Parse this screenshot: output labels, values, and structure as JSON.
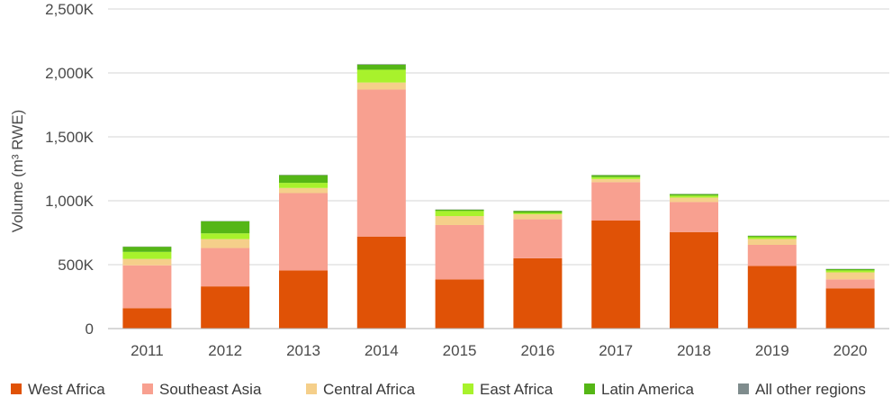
{
  "chart_data": {
    "type": "bar",
    "stacked": true,
    "title": "",
    "xlabel": "",
    "ylabel": "Volume (m³ RWE)",
    "ylim": [
      0,
      2500000
    ],
    "yticks": [
      0,
      500000,
      1000000,
      1500000,
      2000000,
      2500000
    ],
    "ytick_labels": [
      "0",
      "500K",
      "1,000K",
      "1,500K",
      "2,000K",
      "2,500K"
    ],
    "grid": true,
    "legend_position": "bottom",
    "categories": [
      "2011",
      "2012",
      "2013",
      "2014",
      "2015",
      "2016",
      "2017",
      "2018",
      "2019",
      "2020"
    ],
    "series": [
      {
        "name": "West Africa",
        "color": "#e05206",
        "values": [
          160000,
          330000,
          455000,
          720000,
          385000,
          550000,
          845000,
          755000,
          490000,
          315000
        ]
      },
      {
        "name": "Southeast Asia",
        "color": "#f8a090",
        "values": [
          335000,
          300000,
          605000,
          1150000,
          425000,
          305000,
          300000,
          235000,
          165000,
          70000
        ]
      },
      {
        "name": "Central Africa",
        "color": "#f5cf8a",
        "values": [
          50000,
          70000,
          40000,
          55000,
          70000,
          40000,
          25000,
          35000,
          45000,
          55000
        ]
      },
      {
        "name": "East Africa",
        "color": "#a8f22c",
        "values": [
          55000,
          45000,
          40000,
          100000,
          40000,
          10000,
          15000,
          15000,
          15000,
          15000
        ]
      },
      {
        "name": "Latin America",
        "color": "#55b616",
        "values": [
          40000,
          95000,
          60000,
          40000,
          10000,
          15000,
          15000,
          12000,
          10000,
          10000
        ]
      },
      {
        "name": "All other regions",
        "color": "#7f8c8d",
        "values": [
          2000,
          2000,
          3000,
          4000,
          2000,
          2000,
          2000,
          2000,
          2000,
          2000
        ]
      }
    ]
  },
  "colors": {
    "grid": "#d6d6d6",
    "axis": "#b0b0b0"
  }
}
